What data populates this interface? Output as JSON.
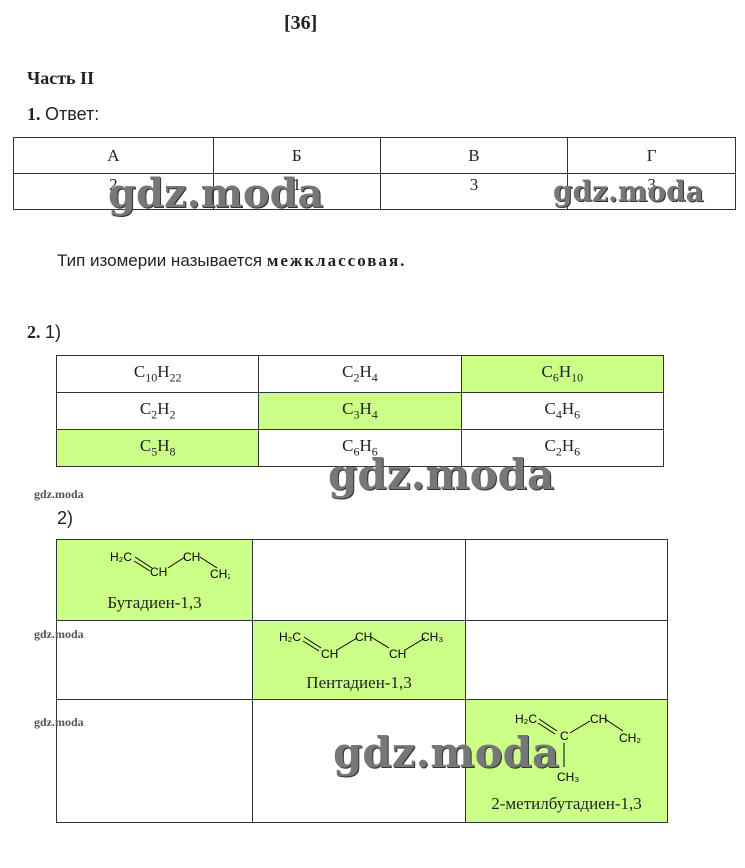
{
  "page_number": "[36]",
  "part_title": "Часть II",
  "q1": {
    "num": "1.",
    "label": "Ответ:",
    "headers": [
      "А",
      "Б",
      "В",
      "Г"
    ],
    "values": [
      "2",
      "1",
      "3",
      "3"
    ],
    "text": "Тип изомерии называется ",
    "bold": "межклассовая."
  },
  "q2": {
    "num": "2.",
    "sub1": "1)",
    "sub2": "2)",
    "grid": [
      [
        {
          "f": "C10H22",
          "h": false
        },
        {
          "f": "C2H4",
          "h": false
        },
        {
          "f": "C6H10",
          "h": true
        }
      ],
      [
        {
          "f": "C2H2",
          "h": false
        },
        {
          "f": "C3H4",
          "h": true
        },
        {
          "f": "C4H6",
          "h": false
        }
      ],
      [
        {
          "f": "C5H8",
          "h": true
        },
        {
          "f": "C6H6",
          "h": false
        },
        {
          "f": "C2H6",
          "h": false
        }
      ]
    ],
    "names": [
      "Бутадиен-1,3",
      "Пентадиен-1,3",
      "2-метилбутадиен-1,3"
    ],
    "highlight": "#ccff88"
  },
  "watermark": "gdz.moda"
}
